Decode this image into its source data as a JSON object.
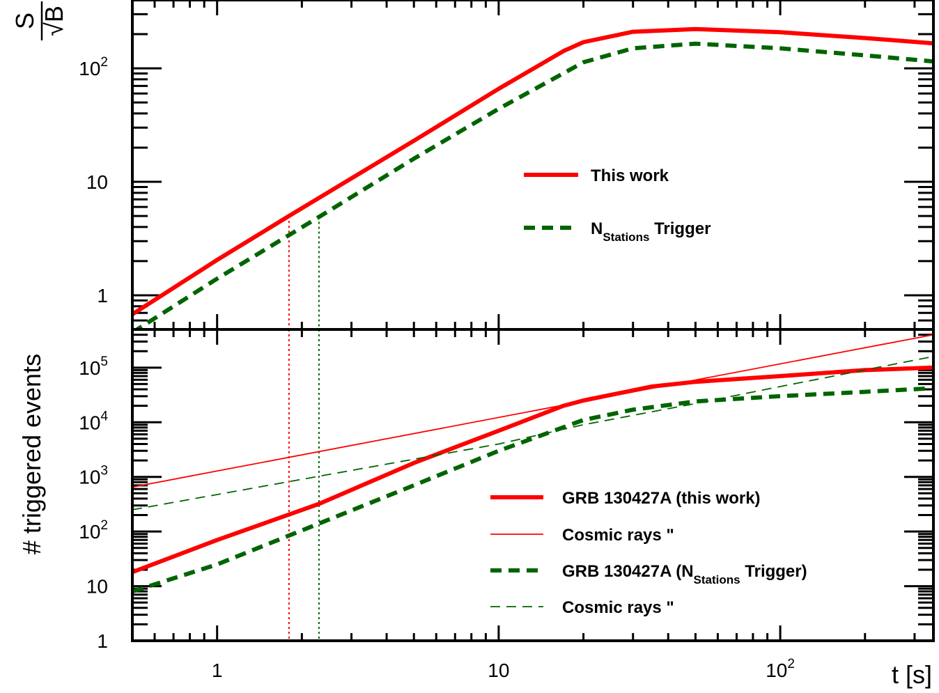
{
  "chart_data": [
    {
      "panel": "top",
      "type": "line",
      "xscale": "log",
      "yscale": "log",
      "xlim": [
        0.5,
        350
      ],
      "ylim": [
        0.5,
        400
      ],
      "ylabel": "S/√B",
      "ylabel_parts": {
        "num": "S",
        "den": "√B"
      },
      "yticks": [
        {
          "value": 1,
          "label": "1"
        },
        {
          "value": 10,
          "label": "10"
        },
        {
          "value": 100,
          "label": "10",
          "sup": "2"
        }
      ],
      "series": [
        {
          "name": "This work",
          "color": "#ff0000",
          "style": "solid-thick",
          "points": [
            [
              0.5,
              0.68
            ],
            [
              1.0,
              2.05
            ],
            [
              1.8,
              5.0
            ],
            [
              5.0,
              23
            ],
            [
              10.0,
              66
            ],
            [
              17.0,
              142
            ],
            [
              20.0,
              170
            ],
            [
              30.0,
              210
            ],
            [
              50.0,
              222
            ],
            [
              100.0,
              208
            ],
            [
              200.0,
              185
            ],
            [
              350.0,
              166
            ]
          ]
        },
        {
          "name_main": "N",
          "name_sub": "Stations",
          "name_rest": " Trigger",
          "color": "#006400",
          "style": "dashed-thick",
          "points": [
            [
              0.5,
              0.47
            ],
            [
              1.0,
              1.4
            ],
            [
              2.3,
              4.9
            ],
            [
              5.0,
              16
            ],
            [
              10.0,
              44
            ],
            [
              20.0,
              113
            ],
            [
              30.0,
              150
            ],
            [
              50.0,
              165
            ],
            [
              100.0,
              150
            ],
            [
              200.0,
              130
            ],
            [
              350.0,
              115
            ]
          ]
        }
      ],
      "vlines": [
        {
          "x": 1.8,
          "color": "#ff0000",
          "ymax": 5.0
        },
        {
          "x": 2.3,
          "color": "#006400",
          "ymax": 4.9
        }
      ]
    },
    {
      "panel": "bottom",
      "type": "line",
      "xscale": "log",
      "yscale": "log",
      "xlim": [
        0.5,
        350
      ],
      "ylim": [
        1,
        500000
      ],
      "ylabel": "# triggered events",
      "xlabel": "t [s]",
      "xticks": [
        {
          "value": 1,
          "label": "1"
        },
        {
          "value": 10,
          "label": "10"
        },
        {
          "value": 100,
          "label": "10",
          "sup": "2"
        }
      ],
      "yticks": [
        {
          "value": 1,
          "label": "1"
        },
        {
          "value": 10,
          "label": "10"
        },
        {
          "value": 100,
          "label": "10",
          "sup": "2"
        },
        {
          "value": 1000,
          "label": "10",
          "sup": "3"
        },
        {
          "value": 10000,
          "label": "10",
          "sup": "4"
        },
        {
          "value": 100000,
          "label": "10",
          "sup": "5"
        }
      ],
      "series": [
        {
          "name": "GRB 130427A  (this work)",
          "color": "#ff0000",
          "style": "solid-thick",
          "points": [
            [
              0.5,
              18
            ],
            [
              1.0,
              70
            ],
            [
              2.3,
              320
            ],
            [
              5.0,
              1800
            ],
            [
              10.0,
              7000
            ],
            [
              17.0,
              20000
            ],
            [
              20.0,
              25000
            ],
            [
              35.0,
              45000
            ],
            [
              50.0,
              55000
            ],
            [
              100.0,
              70000
            ],
            [
              200.0,
              90000
            ],
            [
              350.0,
              100000
            ]
          ]
        },
        {
          "name": "Cosmic rays       \"",
          "color": "#ff0000",
          "style": "solid-thin",
          "points": [
            [
              0.5,
              650
            ],
            [
              350.0,
              400000
            ]
          ]
        },
        {
          "name_main": "GRB 130427A  (N",
          "name_sub": "Stations",
          "name_rest": " Trigger)",
          "color": "#006400",
          "style": "dashed-thick",
          "points": [
            [
              0.5,
              8
            ],
            [
              1.0,
              25
            ],
            [
              2.3,
              140
            ],
            [
              5.0,
              700
            ],
            [
              10.0,
              3000
            ],
            [
              20.0,
              11000
            ],
            [
              30.0,
              17000
            ],
            [
              50.0,
              24000
            ],
            [
              100.0,
              30000
            ],
            [
              200.0,
              36000
            ],
            [
              350.0,
              42000
            ]
          ]
        },
        {
          "name": "Cosmic rays       \"",
          "color": "#006400",
          "style": "dashed-thin",
          "points": [
            [
              0.5,
              250
            ],
            [
              10.0,
              4000
            ],
            [
              20.0,
              9000
            ],
            [
              50.0,
              22000
            ],
            [
              100.0,
              45000
            ],
            [
              350.0,
              160000
            ]
          ]
        }
      ],
      "vlines": [
        {
          "x": 1.8,
          "color": "#ff0000"
        },
        {
          "x": 2.3,
          "color": "#006400"
        }
      ]
    }
  ]
}
